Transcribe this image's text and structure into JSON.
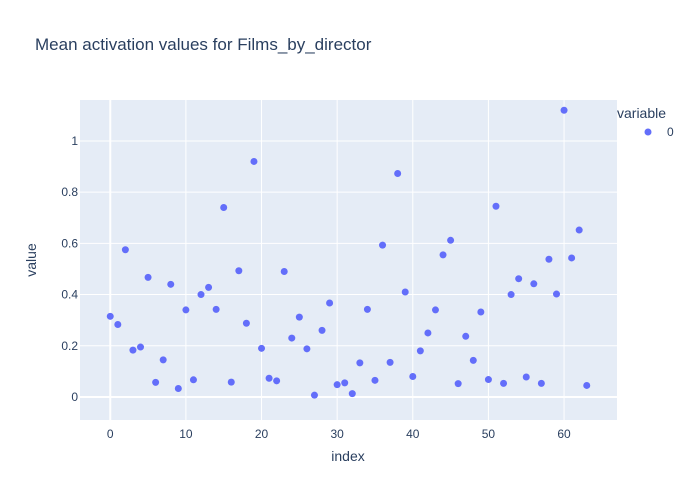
{
  "chart_data": {
    "type": "scatter",
    "title": "Mean activation values for Films_by_director",
    "xlabel": "index",
    "ylabel": "value",
    "xlim": [
      -4,
      67
    ],
    "ylim": [
      -0.09,
      1.16
    ],
    "xticks": [
      0,
      10,
      20,
      30,
      40,
      50,
      60
    ],
    "yticks": [
      0,
      0.2,
      0.4,
      0.6,
      0.8,
      1
    ],
    "ytick_labels": [
      "0",
      "0.2",
      "0.4",
      "0.6",
      "0.8",
      "1"
    ],
    "grid": true,
    "legend": {
      "title": "variable",
      "placement": "top-right"
    },
    "colors": {
      "plot_bg": "#e5ecf6",
      "grid": "#ffffff",
      "marker": "#636efa"
    },
    "series": [
      {
        "name": "0",
        "x": [
          0,
          1,
          2,
          3,
          4,
          5,
          6,
          7,
          8,
          9,
          10,
          11,
          12,
          13,
          14,
          15,
          16,
          17,
          18,
          19,
          20,
          21,
          22,
          23,
          24,
          25,
          26,
          27,
          28,
          29,
          30,
          31,
          32,
          33,
          34,
          35,
          36,
          37,
          38,
          39,
          40,
          41,
          42,
          43,
          44,
          45,
          46,
          47,
          48,
          49,
          50,
          51,
          52,
          53,
          54,
          55,
          56,
          57,
          58,
          59,
          60,
          61,
          62,
          63
        ],
        "y": [
          0.315,
          0.283,
          0.575,
          0.183,
          0.195,
          0.467,
          0.057,
          0.145,
          0.44,
          0.033,
          0.34,
          0.067,
          0.4,
          0.428,
          0.342,
          0.74,
          0.058,
          0.493,
          0.288,
          0.92,
          0.19,
          0.073,
          0.063,
          0.49,
          0.23,
          0.312,
          0.188,
          0.007,
          0.26,
          0.367,
          0.048,
          0.055,
          0.013,
          0.133,
          0.342,
          0.065,
          0.593,
          0.135,
          0.873,
          0.41,
          0.08,
          0.18,
          0.25,
          0.34,
          0.555,
          0.612,
          0.052,
          0.237,
          0.143,
          0.332,
          0.068,
          0.745,
          0.053,
          0.4,
          0.462,
          0.078,
          0.442,
          0.053,
          0.538,
          0.402,
          1.12,
          0.543,
          0.652,
          0.045
        ]
      }
    ]
  }
}
